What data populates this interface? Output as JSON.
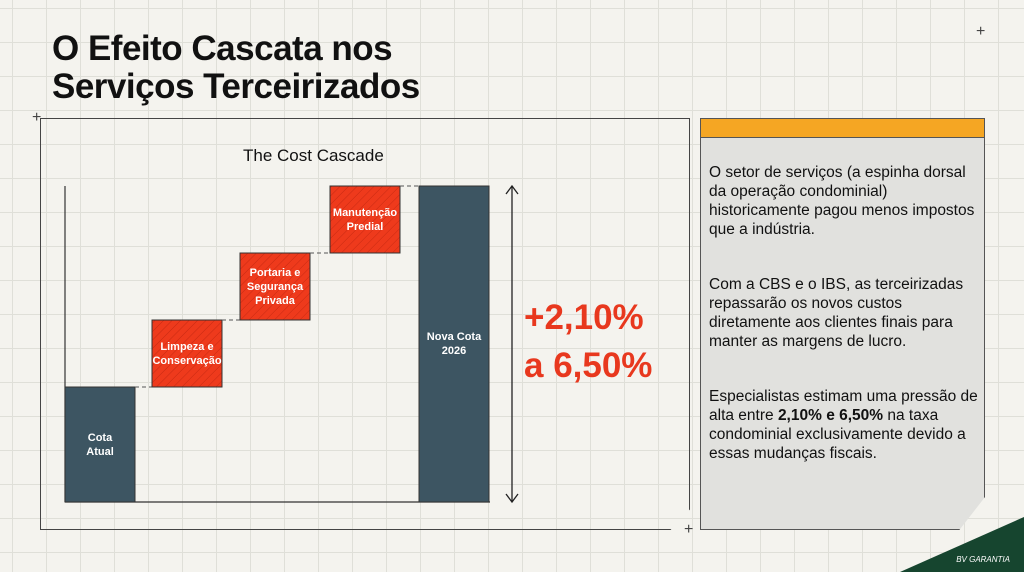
{
  "title_line1": "O Efeito Cascata nos",
  "title_line2": "Serviços Terceirizados",
  "chart_data": {
    "type": "waterfall",
    "title": "The Cost Cascade",
    "categories": [
      "Cota Atual",
      "Limpeza e Conservação",
      "Portaria e Segurança Privada",
      "Manutenção Predial",
      "Nova Cota 2026"
    ],
    "labels": [
      [
        "Cota",
        "Atual"
      ],
      [
        "Limpeza e",
        "Conservação"
      ],
      [
        "Portaria e",
        "Segurança",
        "Privada"
      ],
      [
        "Manutenção",
        "Predial"
      ],
      [
        "Nova Cota",
        "2026"
      ]
    ],
    "values": [
      115,
      67,
      67,
      67,
      316
    ],
    "kinds": [
      "total",
      "increase",
      "increase",
      "increase",
      "total"
    ],
    "xlabel": "",
    "ylabel": "",
    "grid": false,
    "annotation_line1": "+2,10%",
    "annotation_line2": "a 6,50%",
    "colors": {
      "total": "#3d5562",
      "increase": "#ee3a1c",
      "annotation": "#e8381e"
    }
  },
  "panel": {
    "p1": "O setor de serviços (a espinha dorsal da operação condominial) historicamente pagou menos impostos que a indústria.",
    "p2": "Com a CBS e o IBS, as terceirizadas repassarão os novos custos diretamente aos clientes finais para manter as margens de lucro.",
    "p3_pre": "Especialistas estimam uma pressão de alta entre ",
    "p3_bold": "2,10% e 6,50%",
    "p3_post": " na taxa condominial exclusivamente devido a essas mudanças fiscais."
  },
  "logo": "BV GARANTIA"
}
